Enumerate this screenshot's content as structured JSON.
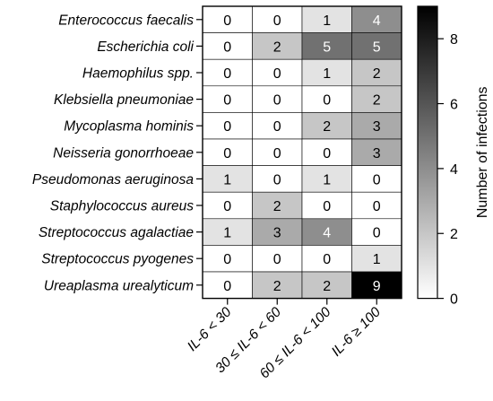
{
  "chart_data": {
    "type": "heatmap",
    "rows": [
      "Enterococcus faecalis",
      "Escherichia coli",
      "Haemophilus spp.",
      "Klebsiella pneumoniae",
      "Mycoplasma hominis",
      "Neisseria gonorrhoeae",
      "Pseudomonas aeruginosa",
      "Staphylococcus aureus",
      "Streptococcus agalactiae",
      "Streptococcus pyogenes",
      "Ureaplasma urealyticum"
    ],
    "columns": [
      "IL-6 < 30",
      "30 ≤ IL-6 < 60",
      "60 ≤ IL-6 < 100",
      "IL-6 ≥ 100"
    ],
    "values": [
      [
        0,
        0,
        1,
        4
      ],
      [
        0,
        2,
        5,
        5
      ],
      [
        0,
        0,
        1,
        2
      ],
      [
        0,
        0,
        0,
        2
      ],
      [
        0,
        0,
        2,
        3
      ],
      [
        0,
        0,
        0,
        3
      ],
      [
        1,
        0,
        1,
        0
      ],
      [
        0,
        2,
        0,
        0
      ],
      [
        1,
        3,
        4,
        0
      ],
      [
        0,
        0,
        0,
        1
      ],
      [
        0,
        2,
        2,
        9
      ]
    ],
    "colorbar": {
      "label": "Number of infections",
      "range": [
        0,
        9
      ],
      "ticks": [
        0,
        2,
        4,
        6,
        8
      ],
      "color_low": "#ffffff",
      "color_high": "#000000"
    },
    "row_label_style": "italic"
  }
}
